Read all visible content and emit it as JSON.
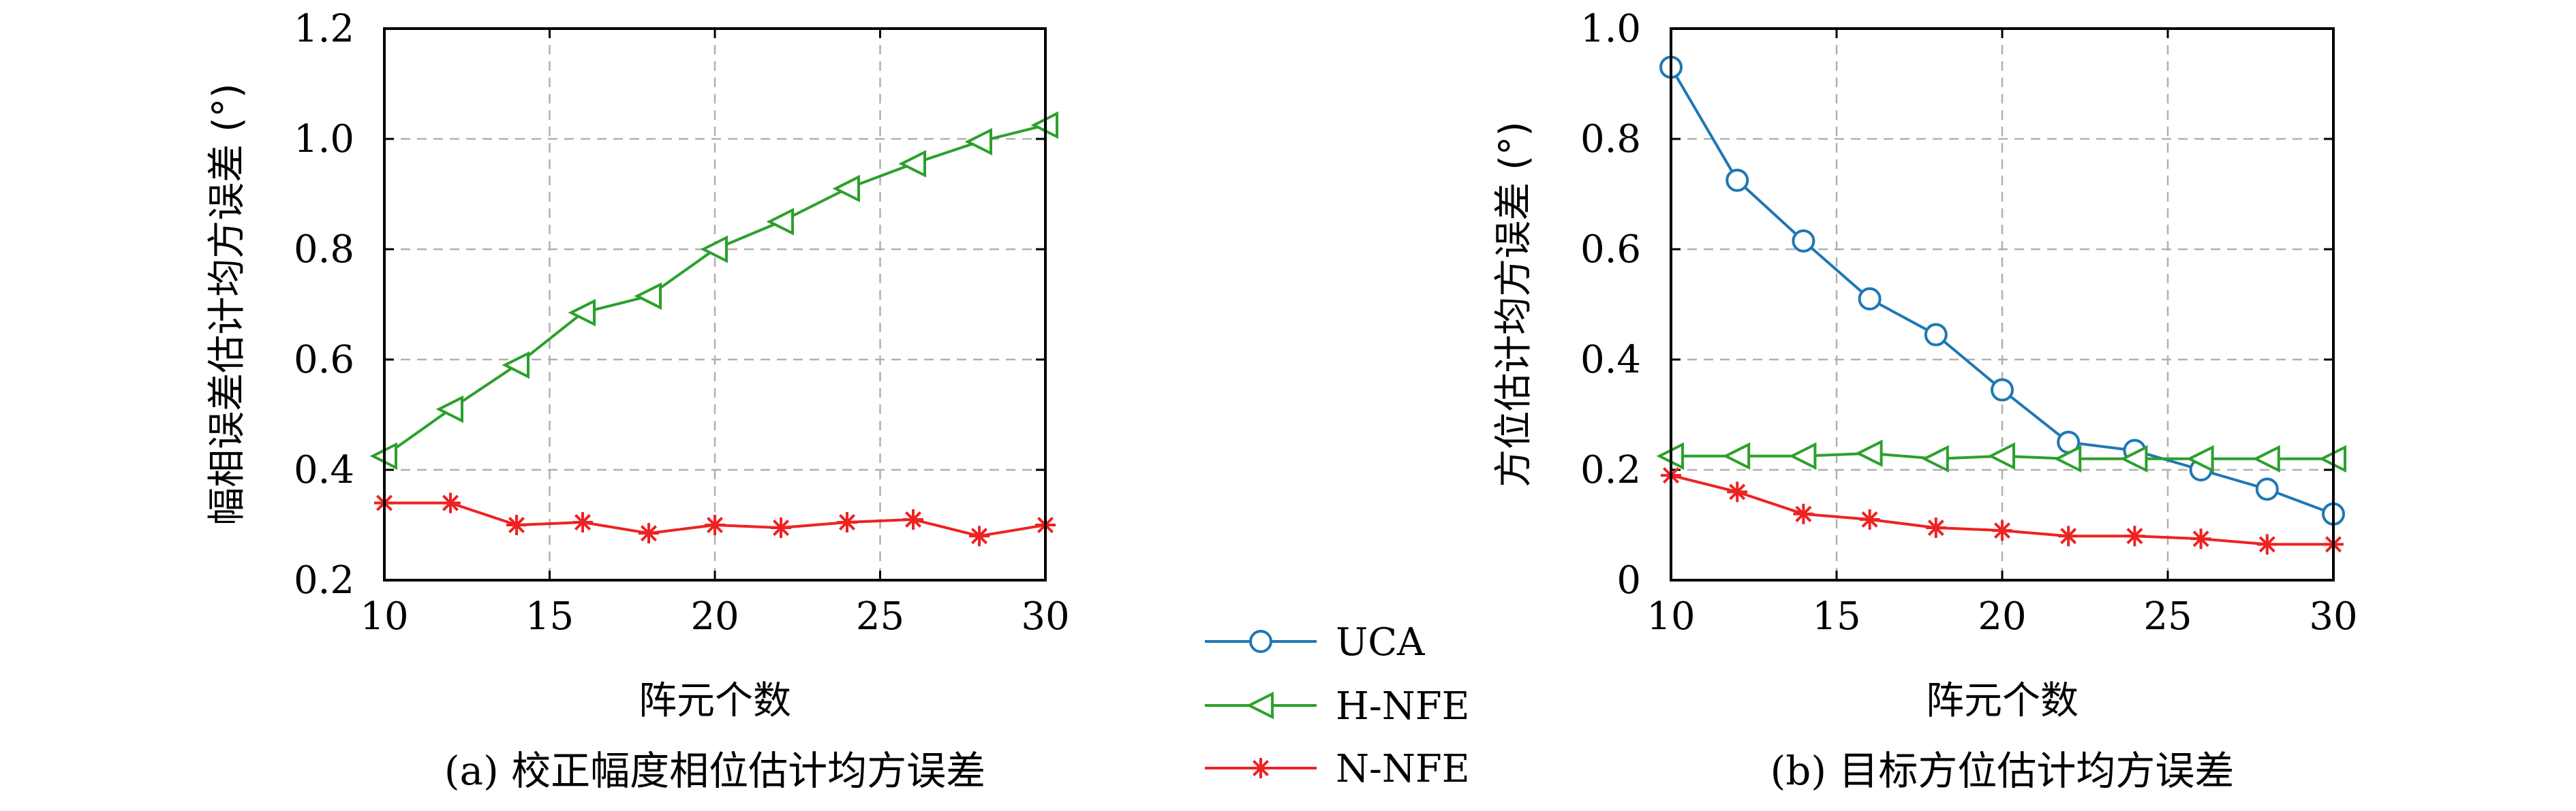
{
  "chart_data": [
    {
      "type": "line",
      "title": "",
      "caption": "(a) 校正幅度相位估计均方误差",
      "xlabel": "阵元个数",
      "ylabel": "幅相误差估计均方误差 (°)",
      "xlim": [
        10,
        30
      ],
      "ylim": [
        0.2,
        1.2
      ],
      "xticks": [
        10,
        15,
        20,
        25,
        30
      ],
      "yticks": [
        0.2,
        0.4,
        0.6,
        0.8,
        1.0,
        1.2
      ],
      "ytick_labels": [
        "0.2",
        "0.4",
        "0.6",
        "0.8",
        "1.0",
        "1.2"
      ],
      "grid": true,
      "x": [
        10,
        12,
        14,
        16,
        18,
        20,
        22,
        24,
        26,
        28,
        30
      ],
      "series": [
        {
          "name": "H-NFE",
          "color": "#2ca02c",
          "marker": "triangle-left",
          "values": [
            0.425,
            0.51,
            0.59,
            0.685,
            0.715,
            0.8,
            0.85,
            0.91,
            0.955,
            0.995,
            1.025
          ]
        },
        {
          "name": "N-NFE",
          "color": "#ee2222",
          "marker": "asterisk",
          "values": [
            0.34,
            0.34,
            0.3,
            0.305,
            0.285,
            0.3,
            0.295,
            0.305,
            0.31,
            0.28,
            0.3
          ]
        }
      ]
    },
    {
      "type": "line",
      "title": "",
      "caption": "(b) 目标方位估计均方误差",
      "xlabel": "阵元个数",
      "ylabel": "方位估计均方误差 (°)",
      "xlim": [
        10,
        30
      ],
      "ylim": [
        0,
        1.0
      ],
      "xticks": [
        10,
        15,
        20,
        25,
        30
      ],
      "yticks": [
        0,
        0.2,
        0.4,
        0.6,
        0.8,
        1.0
      ],
      "ytick_labels": [
        "0",
        "0.2",
        "0.4",
        "0.6",
        "0.8",
        "1.0"
      ],
      "grid": true,
      "x": [
        10,
        12,
        14,
        16,
        18,
        20,
        22,
        24,
        26,
        28,
        30
      ],
      "series": [
        {
          "name": "UCA",
          "color": "#1f77b4",
          "marker": "circle",
          "values": [
            0.93,
            0.725,
            0.615,
            0.51,
            0.445,
            0.345,
            0.25,
            0.235,
            0.2,
            0.165,
            0.12
          ]
        },
        {
          "name": "H-NFE",
          "color": "#2ca02c",
          "marker": "triangle-left",
          "values": [
            0.225,
            0.225,
            0.225,
            0.23,
            0.22,
            0.225,
            0.22,
            0.22,
            0.22,
            0.22,
            0.22
          ]
        },
        {
          "name": "N-NFE",
          "color": "#ee2222",
          "marker": "asterisk",
          "values": [
            0.19,
            0.16,
            0.12,
            0.11,
            0.095,
            0.09,
            0.08,
            0.08,
            0.075,
            0.065,
            0.065
          ]
        }
      ]
    }
  ],
  "legend": {
    "placement": "bottom-center",
    "entries": [
      {
        "name": "UCA",
        "color": "#1f77b4",
        "marker": "circle"
      },
      {
        "name": "H-NFE",
        "color": "#2ca02c",
        "marker": "triangle-left"
      },
      {
        "name": "N-NFE",
        "color": "#ee2222",
        "marker": "asterisk"
      }
    ]
  }
}
